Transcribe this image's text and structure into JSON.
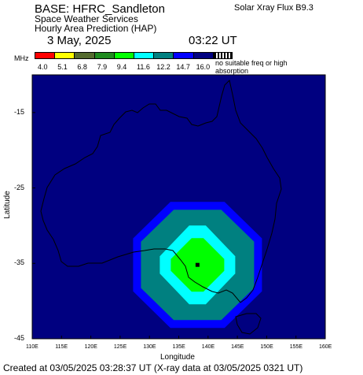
{
  "header": {
    "title": "BASE: HFRC_Sandleton",
    "xray_flux": "Solar Xray Flux B9.3",
    "organization": "Space Weather Services",
    "product": "Hourly Area Prediction (HAP)",
    "date": "3 May, 2025",
    "time": "03:22 UT"
  },
  "legend": {
    "unit": "MHz",
    "entries": [
      {
        "label": "4.0",
        "color": "#ff0000"
      },
      {
        "label": "5.1",
        "color": "#ffff00"
      },
      {
        "label": "6.8",
        "color": "#556b2f"
      },
      {
        "label": "7.9",
        "color": "#1f8b1f"
      },
      {
        "label": "9.4",
        "color": "#00ff00"
      },
      {
        "label": "11.6",
        "color": "#00ffff"
      },
      {
        "label": "12.2",
        "color": "#008080"
      },
      {
        "label": "14.7",
        "color": "#0000ff"
      },
      {
        "label": "16.0",
        "color": "#000080"
      }
    ],
    "no_suitable_label": "no suitable freq or high absorption"
  },
  "map": {
    "background_color": "#000080",
    "lon_range": [
      110,
      160
    ],
    "lat_range": [
      -45,
      -10
    ],
    "x_ticks": [
      "110E",
      "115E",
      "120E",
      "125E",
      "130E",
      "135E",
      "140E",
      "145E",
      "150E",
      "155E",
      "160E"
    ],
    "y_ticks": [
      "-15",
      "-25",
      "-35",
      "-45"
    ],
    "xlabel": "Longitude",
    "ylabel": "Latitude",
    "base_location": {
      "lon": 138.2,
      "lat": -35.2
    },
    "contour_colors": [
      "#0000ff",
      "#008080",
      "#00ffff",
      "#00ff00"
    ]
  },
  "footer": "Created at 03/05/2025 03:28:37 UT (X-ray data at 03/05/2025 0321 UT)"
}
